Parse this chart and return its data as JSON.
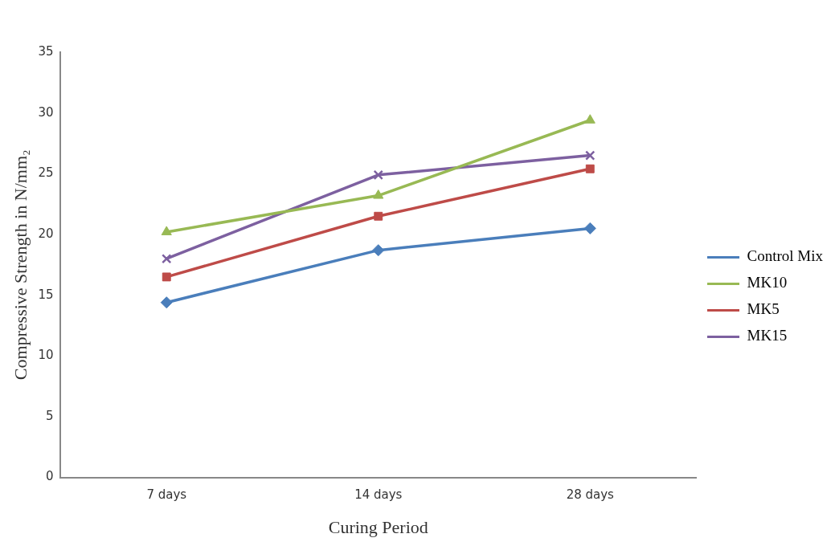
{
  "chart_data": {
    "type": "line",
    "xlabel": "Curing Period",
    "ylabel": "Compressive Strength in N/mm₂",
    "categories": [
      "7 days",
      "14 days",
      "28 days"
    ],
    "series": [
      {
        "name": "Control Mix",
        "color": "#4a7ebb",
        "marker": "diamond",
        "values": [
          14.4,
          18.7,
          20.5
        ]
      },
      {
        "name": "MK10",
        "color": "#98b954",
        "marker": "triangle",
        "values": [
          20.2,
          23.2,
          29.4
        ]
      },
      {
        "name": "MK5",
        "color": "#be4b48",
        "marker": "square",
        "values": [
          16.5,
          21.5,
          25.4
        ]
      },
      {
        "name": "MK15",
        "color": "#7d60a0",
        "marker": "cross",
        "values": [
          18.0,
          24.9,
          26.5
        ]
      }
    ],
    "ylim": [
      0,
      35
    ],
    "yticks": [
      0,
      5,
      10,
      15,
      20,
      25,
      30,
      35
    ],
    "grid": false,
    "legend": "right",
    "line_style": "solid"
  }
}
